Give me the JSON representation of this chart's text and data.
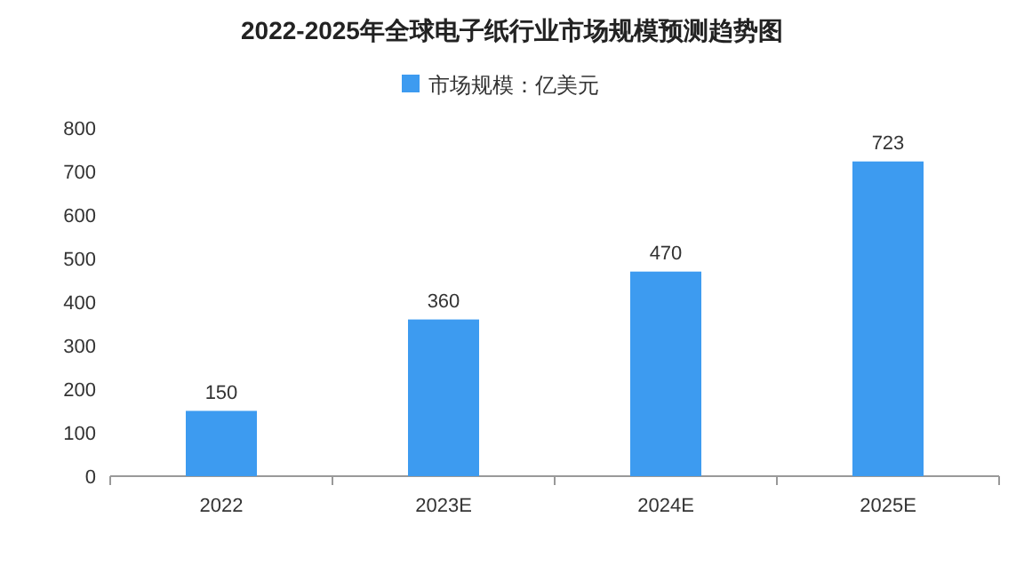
{
  "chart_data": {
    "type": "bar",
    "title": "2022-2025年全球电子纸行业市场规模预测趋势图",
    "categories": [
      "2022",
      "2023E",
      "2024E",
      "2025E"
    ],
    "series": [
      {
        "name": "市场规模：亿美元",
        "color": "#3d9bf0",
        "values": [
          150,
          360,
          470,
          723
        ]
      }
    ],
    "ylim": [
      0,
      800
    ],
    "yticks": [
      0,
      100,
      200,
      300,
      400,
      500,
      600,
      700,
      800
    ],
    "data_labels": true,
    "legend": "top",
    "grid": false
  }
}
